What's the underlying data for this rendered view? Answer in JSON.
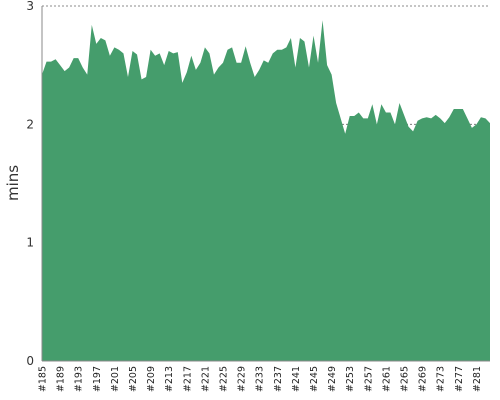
{
  "chart_data": {
    "type": "area",
    "title": "",
    "xlabel": "",
    "ylabel": "mins",
    "ylim": [
      0,
      3
    ],
    "yticks": [
      "0",
      "1",
      "2",
      "3"
    ],
    "grid": true,
    "colors": {
      "area": "#459d6c",
      "grid": "#666666",
      "axis": "#888888"
    },
    "xtick_labels": [
      "#185",
      "#189",
      "#193",
      "#197",
      "#201",
      "#205",
      "#209",
      "#213",
      "#217",
      "#221",
      "#225",
      "#229",
      "#233",
      "#237",
      "#241",
      "#245",
      "#249",
      "#253",
      "#257",
      "#261",
      "#265",
      "#269",
      "#273",
      "#277",
      "#281"
    ],
    "series": [
      {
        "x": [
          185,
          186,
          187,
          188,
          189,
          190,
          191,
          192,
          193,
          194,
          195,
          196,
          197,
          198,
          199,
          200,
          201,
          202,
          203,
          204,
          205,
          206,
          207,
          208,
          209,
          210,
          211,
          212,
          213,
          214,
          215,
          216,
          217,
          218,
          219,
          220,
          221,
          222,
          223,
          224,
          225,
          226,
          227,
          228,
          229,
          230,
          231,
          232,
          233,
          234,
          235,
          236,
          237,
          238,
          239,
          240,
          241,
          242,
          243,
          244,
          245,
          246,
          247,
          248,
          249,
          250,
          251,
          252,
          253,
          254,
          255,
          256,
          257,
          258,
          259,
          260,
          261,
          262,
          263,
          264,
          265,
          266,
          267,
          268,
          269,
          270,
          271,
          272,
          273,
          274,
          275,
          276,
          277,
          278,
          279,
          280,
          281,
          282,
          283,
          284
        ],
        "values": [
          2.42,
          2.53,
          2.53,
          2.55,
          2.5,
          2.45,
          2.48,
          2.56,
          2.56,
          2.48,
          2.42,
          2.84,
          2.68,
          2.73,
          2.71,
          2.58,
          2.65,
          2.63,
          2.6,
          2.4,
          2.62,
          2.59,
          2.38,
          2.4,
          2.63,
          2.58,
          2.6,
          2.5,
          2.62,
          2.6,
          2.61,
          2.35,
          2.44,
          2.58,
          2.46,
          2.52,
          2.65,
          2.6,
          2.42,
          2.48,
          2.52,
          2.63,
          2.65,
          2.52,
          2.52,
          2.66,
          2.52,
          2.4,
          2.46,
          2.54,
          2.52,
          2.6,
          2.63,
          2.63,
          2.65,
          2.73,
          2.48,
          2.73,
          2.7,
          2.48,
          2.75,
          2.52,
          2.88,
          2.5,
          2.42,
          2.18,
          2.05,
          1.92,
          2.07,
          2.07,
          2.1,
          2.05,
          2.05,
          2.17,
          2.0,
          2.17,
          2.1,
          2.1,
          2.0,
          2.18,
          2.08,
          1.98,
          1.94,
          2.03,
          2.05,
          2.06,
          2.05,
          2.08,
          2.05,
          2.01,
          2.06,
          2.13,
          2.13,
          2.13,
          2.05,
          1.97,
          2.0,
          2.06,
          2.05,
          2.01
        ]
      }
    ]
  }
}
